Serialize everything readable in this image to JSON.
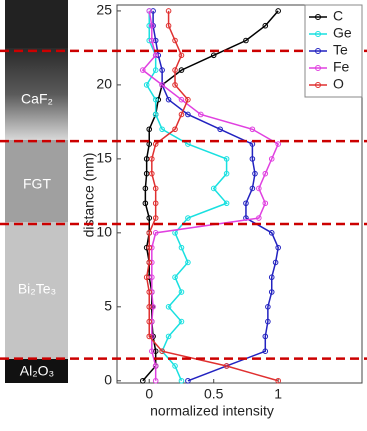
{
  "chart_data": {
    "type": "line",
    "xlabel": "normalized intensity",
    "ylabel": "distance (nm)",
    "y": [
      0,
      1,
      2,
      3,
      4,
      5,
      6,
      7,
      8,
      9,
      10,
      11,
      12,
      13,
      14,
      15,
      16,
      17,
      18,
      19,
      20,
      21,
      22,
      23,
      24,
      25
    ],
    "series": [
      {
        "name": "C",
        "color": "#000000",
        "values": [
          -0.05,
          0.05,
          0.05,
          0.03,
          0.02,
          0.02,
          0.02,
          0,
          0,
          -0.02,
          0,
          0,
          -0.03,
          -0.03,
          -0.02,
          -0.02,
          0,
          0,
          0.05,
          0.07,
          0.1,
          0.25,
          0.5,
          0.75,
          0.9,
          1.0
        ]
      },
      {
        "name": "Ge",
        "color": "#19e0e0",
        "values": [
          0.25,
          0.2,
          0.1,
          0.15,
          0.25,
          0.15,
          0.25,
          0.2,
          0.3,
          0.25,
          0.2,
          0.3,
          0.6,
          0.5,
          0.6,
          0.6,
          0.3,
          0.1,
          0.05,
          0.05,
          -0.02,
          0.05,
          0.05,
          0,
          0,
          0
        ]
      },
      {
        "name": "Te",
        "color": "#2222c0",
        "values": [
          0.3,
          0.6,
          0.9,
          0.9,
          0.92,
          0.92,
          0.95,
          0.95,
          0.98,
          1.0,
          0.95,
          0.75,
          0.75,
          0.8,
          0.82,
          0.8,
          0.8,
          0.55,
          0.3,
          0.15,
          0.1,
          0.1,
          0.07,
          0.05,
          0.03,
          0.03
        ]
      },
      {
        "name": "Fe",
        "color": "#e040e0",
        "values": [
          0.05,
          0.05,
          0.02,
          0.02,
          0.02,
          0.03,
          0.02,
          0.02,
          0.02,
          0.02,
          0.05,
          0.85,
          0.9,
          0.85,
          0.9,
          0.95,
          1.0,
          0.8,
          0.4,
          0.25,
          0.1,
          -0.05,
          0.05,
          0.02,
          0.02,
          0
        ]
      },
      {
        "name": "O",
        "color": "#e03030",
        "values": [
          1.0,
          0.6,
          0.1,
          0,
          0,
          0,
          0,
          -0.02,
          0,
          0,
          0,
          0.05,
          0.05,
          0.05,
          0.02,
          0.02,
          0.05,
          0.2,
          0.25,
          0.3,
          0.2,
          0.2,
          0.25,
          0.2,
          0.15,
          0.15
        ]
      }
    ],
    "xlim": [
      -0.25,
      1.65
    ],
    "xticks": [
      0,
      0.5,
      1
    ],
    "ylim": [
      -0.15,
      25.4
    ],
    "yticks": [
      0,
      5,
      10,
      15,
      20,
      25
    ],
    "hlines": [
      22.3,
      16.2,
      10.6,
      1.5
    ],
    "hline_color": "#cc0000",
    "layers": [
      "CaF₂",
      "FGT",
      "Bi₂Te₃",
      "Al₂O₃"
    ],
    "legend": "upper right"
  }
}
